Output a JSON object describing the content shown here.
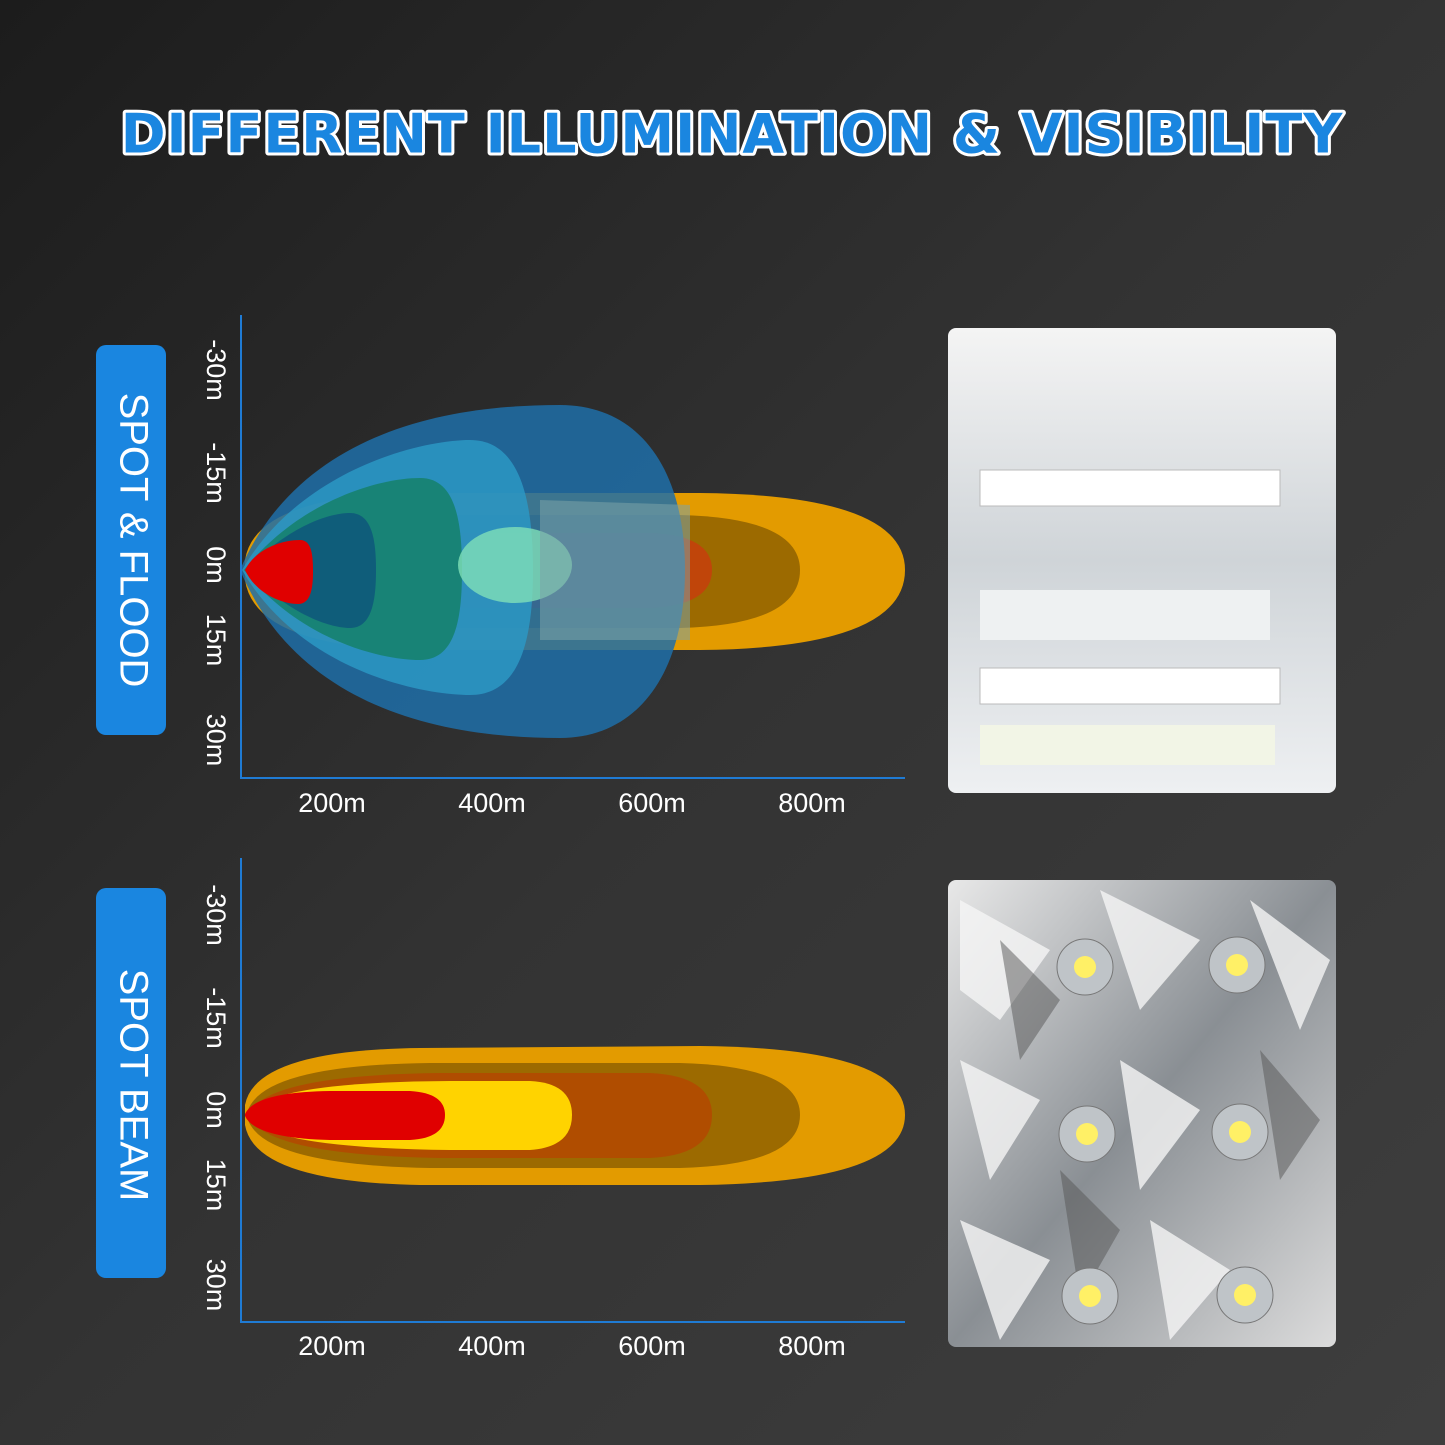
{
  "title": "DIFFERENT ILLUMINATION & VISIBILITY",
  "panels": [
    {
      "label": "SPOT & FLOOD",
      "y_labels": [
        "-30m",
        "-15m",
        "0m",
        "15m",
        "30m"
      ],
      "x_labels": [
        "200m",
        "400m",
        "600m",
        "800m"
      ]
    },
    {
      "label": "SPOT BEAM",
      "y_labels": [
        "-30m",
        "-15m",
        "0m",
        "15m",
        "30m"
      ],
      "x_labels": [
        "200m",
        "400m",
        "600m",
        "800m"
      ]
    }
  ]
}
